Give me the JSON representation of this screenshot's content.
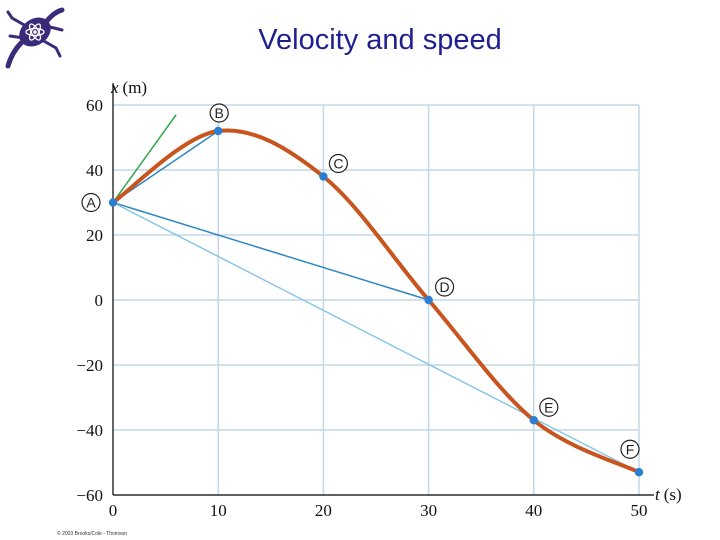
{
  "title": "Velocity and speed",
  "copyright": "© 2003 Brooks/Cole - Thomson",
  "logo": {
    "icon": "lizard-atom-logo"
  },
  "colors": {
    "curve": "#c8541e",
    "chord": "#2c86c4",
    "long_chord": "#88c6e6",
    "tangent": "#2ea84b",
    "point": "#2b7fd0",
    "grid": "#c4d7e8",
    "title": "#1f1f8f"
  },
  "chart_data": {
    "type": "line",
    "title": "Velocity and speed",
    "xlabel": "t (s)",
    "ylabel": "x (m)",
    "xlabel_var": "t",
    "xlabel_unit": "(s)",
    "ylabel_var": "x",
    "ylabel_unit": "(m)",
    "xlim": [
      0,
      50
    ],
    "ylim": [
      -60,
      60
    ],
    "grid": true,
    "x_ticks": [
      0,
      10,
      20,
      30,
      40,
      50
    ],
    "y_ticks": [
      60,
      40,
      20,
      0,
      -20,
      -40,
      -60
    ],
    "x_tick_labels": [
      "0",
      "10",
      "20",
      "30",
      "40",
      "50"
    ],
    "y_tick_labels": [
      "60",
      "40",
      "20",
      "0",
      "−20",
      "−40",
      "−60"
    ],
    "points": [
      {
        "label": "A",
        "t": 0,
        "x": 30
      },
      {
        "label": "B",
        "t": 10,
        "x": 52
      },
      {
        "label": "C",
        "t": 20,
        "x": 38
      },
      {
        "label": "D",
        "t": 30,
        "x": 0
      },
      {
        "label": "E",
        "t": 40,
        "x": -37
      },
      {
        "label": "F",
        "t": 50,
        "x": -53
      }
    ],
    "chords": [
      {
        "from": "A",
        "to": "B",
        "style": "chord"
      },
      {
        "from": "A",
        "to": "D",
        "style": "chord"
      },
      {
        "from": "A",
        "to": "F",
        "style": "long_chord"
      }
    ],
    "tangent": {
      "at": "A",
      "to": [
        6,
        57
      ]
    }
  }
}
